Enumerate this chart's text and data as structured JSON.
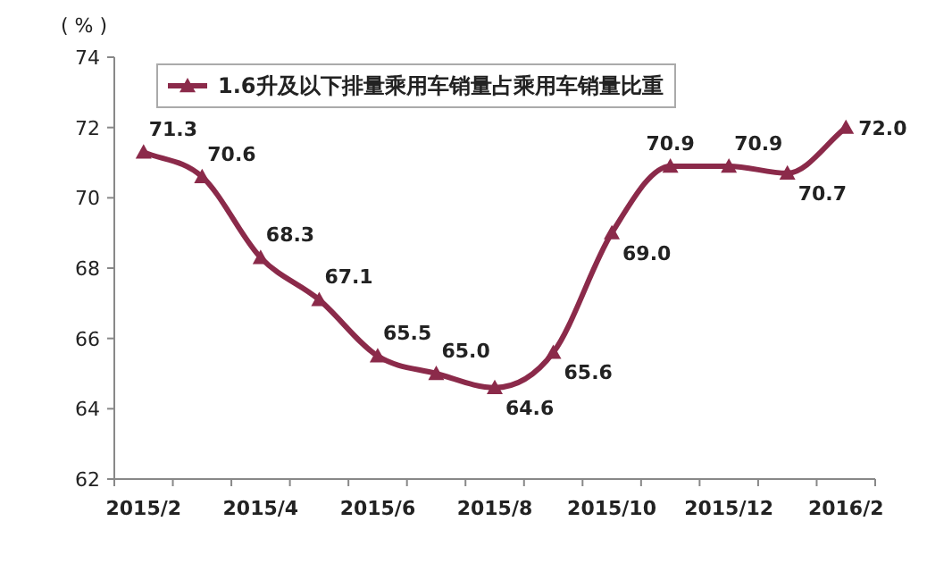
{
  "chart_data": {
    "type": "line",
    "ylabel": "( % )",
    "categories": [
      "2015/2",
      null,
      "2015/4",
      null,
      "2015/6",
      null,
      "2015/8",
      null,
      "2015/10",
      null,
      "2015/12",
      null,
      "2016/2"
    ],
    "series": [
      {
        "name": "1.6升及以下排量乘用车销量占乘用车销量比重",
        "color": "#8b2a4a",
        "values": [
          71.3,
          70.6,
          68.3,
          67.1,
          65.5,
          65.0,
          64.6,
          65.6,
          69.0,
          70.9,
          70.9,
          70.7,
          72.0
        ],
        "value_labels": [
          "71.3",
          "70.6",
          "68.3",
          "67.1",
          "65.5",
          "65.0",
          "64.6",
          "65.6",
          "69.0",
          "70.9",
          "70.9",
          "70.7",
          "72.0"
        ]
      }
    ],
    "ylim": [
      62,
      74
    ],
    "yticks": [
      62,
      64,
      66,
      68,
      70,
      72,
      74
    ],
    "legend": "top left",
    "marker": "triangle"
  }
}
